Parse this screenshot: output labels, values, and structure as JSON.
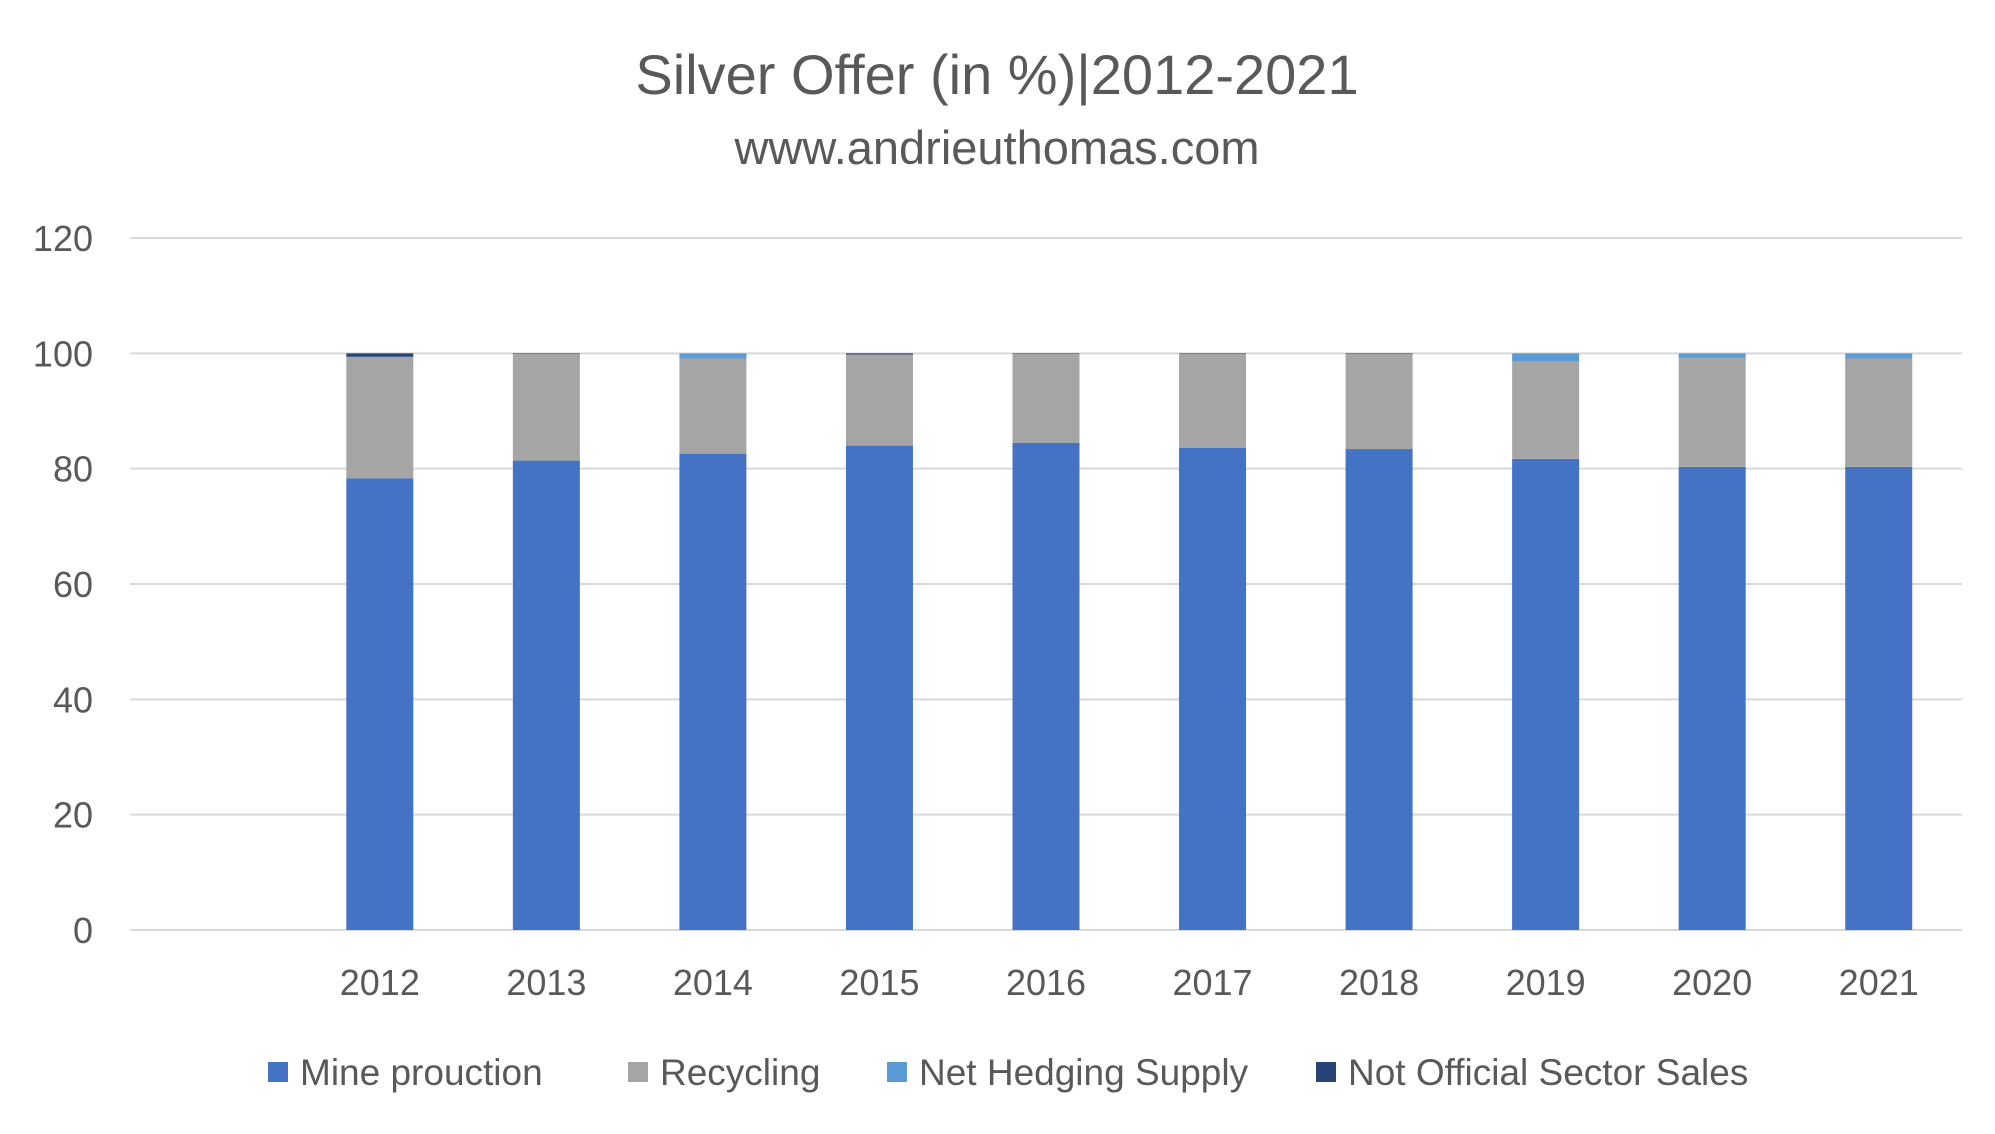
{
  "chart_data": {
    "type": "bar",
    "stacked": true,
    "title": "Silver Offer (in %)|2012-2021",
    "subtitle": "www.andrieuthomas.com",
    "xlabel": "",
    "ylabel": "",
    "ylim": [
      0,
      120
    ],
    "yticks": [
      0,
      20,
      40,
      60,
      80,
      100,
      120
    ],
    "categories": [
      "",
      "2012",
      "2013",
      "2014",
      "2015",
      "2016",
      "2017",
      "2018",
      "2019",
      "2020",
      "2021"
    ],
    "grid": true,
    "legend_position": "bottom",
    "series": [
      {
        "name": "Mine prouction",
        "color": "#4472C4",
        "values": [
          0,
          78.3,
          81.4,
          82.6,
          84.0,
          84.5,
          83.6,
          83.4,
          81.7,
          80.3,
          80.3
        ]
      },
      {
        "name": "Recycling",
        "color": "#A5A5A5",
        "values": [
          0,
          21.1,
          18.5,
          16.5,
          15.8,
          15.4,
          16.3,
          16.5,
          16.9,
          18.9,
          18.8
        ]
      },
      {
        "name": "Net Hedging Supply",
        "color": "#5B9BD5",
        "values": [
          0,
          0.0,
          0.0,
          0.9,
          0.0,
          0.0,
          0.0,
          0.0,
          1.4,
          0.8,
          0.9
        ]
      },
      {
        "name": "Not Official Sector Sales",
        "color": "#264478",
        "values": [
          0,
          0.6,
          0.1,
          0.0,
          0.2,
          0.1,
          0.1,
          0.1,
          0.0,
          0.0,
          0.0
        ]
      }
    ]
  }
}
